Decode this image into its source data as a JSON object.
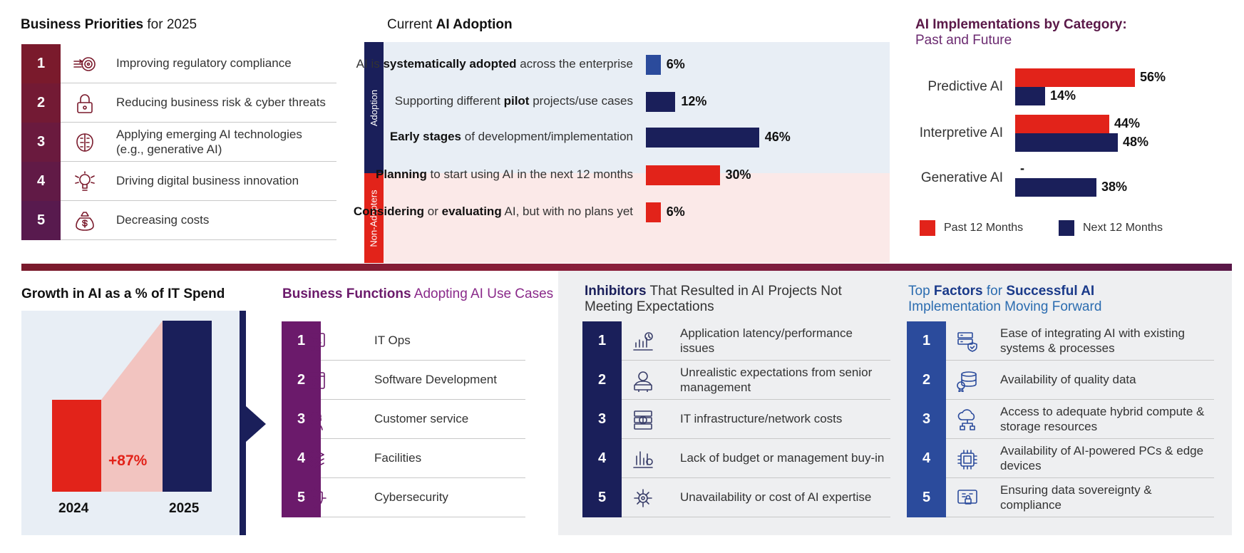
{
  "colors": {
    "red": "#e2231a",
    "navy": "#1a1f5a",
    "maroon": "#7a1a2c",
    "purple": "#6b1a6b",
    "blue": "#2b4b9c"
  },
  "business_priorities": {
    "title_strong": "Business Priorities",
    "title_rest": "for 2025",
    "items": [
      {
        "num": "1",
        "label": "Improving regulatory compliance",
        "icon": "compliance-target-icon"
      },
      {
        "num": "2",
        "label": "Reducing business risk & cyber threats",
        "icon": "lock-shield-icon"
      },
      {
        "num": "3",
        "label": "Applying emerging AI technologies (e.g., generative AI)",
        "icon": "ai-brain-icon"
      },
      {
        "num": "4",
        "label": "Driving digital business innovation",
        "icon": "innovation-bulb-icon"
      },
      {
        "num": "5",
        "label": "Decreasing costs",
        "icon": "money-bag-icon"
      }
    ]
  },
  "adoption": {
    "title_rest": "Current",
    "title_strong": "AI Adoption",
    "tab_adoption": "Adoption",
    "tab_non_adopters": "Non-Adopters",
    "rows": [
      {
        "pre": "AI is ",
        "strong": "systematically adopted",
        "post": " across the enterprise",
        "strong2": "",
        "post2": "",
        "value_label": "6%"
      },
      {
        "pre": "Supporting different ",
        "strong": "pilot",
        "post": " projects/use cases",
        "strong2": "",
        "post2": "",
        "value_label": "12%"
      },
      {
        "pre": "",
        "strong": "Early stages",
        "post": " of development/implementation",
        "strong2": "",
        "post2": "",
        "value_label": "46%"
      },
      {
        "pre": "",
        "strong": "Planning",
        "post": " to start using AI in the next 12 months",
        "strong2": "",
        "post2": "",
        "value_label": "30%"
      },
      {
        "pre": "",
        "strong": "Considering",
        "post": " or ",
        "strong2": "evaluating",
        "post2": " AI, but with no plans yet",
        "value_label": "6%"
      }
    ]
  },
  "categories": {
    "title_line1": "AI Implementations by Category:",
    "title_line2": "Past and Future",
    "past_label": "Past 12 Months",
    "next_label": "Next 12 Months",
    "rows": [
      {
        "name": "Predictive AI",
        "past_label": "56%",
        "next_label": "14%"
      },
      {
        "name": "Interpretive AI",
        "past_label": "44%",
        "next_label": "48%"
      },
      {
        "name": "Generative AI",
        "past_label": "-",
        "next_label": "38%"
      }
    ]
  },
  "growth": {
    "title": "Growth in AI as a % of IT Spend",
    "growth_label": "+87%",
    "year1": "2024",
    "year2": "2025"
  },
  "functions": {
    "title_strong": "Business Functions",
    "title_rest": "Adopting AI Use Cases",
    "items": [
      {
        "num": "1",
        "label": "IT Ops",
        "icon": "monitor-icon"
      },
      {
        "num": "2",
        "label": "Software Development",
        "icon": "code-window-icon"
      },
      {
        "num": "3",
        "label": "Customer service",
        "icon": "headset-agent-icon"
      },
      {
        "num": "4",
        "label": "Facilities",
        "icon": "layers-gear-icon"
      },
      {
        "num": "5",
        "label": "Cybersecurity",
        "icon": "shield-circuit-icon"
      }
    ]
  },
  "inhibitors": {
    "title_strong": "Inhibitors",
    "title_rest": "That Resulted in AI Projects Not",
    "title_line2": "Meeting Expectations",
    "items": [
      {
        "num": "1",
        "label": "Application latency/performance issues",
        "icon": "performance-chart-icon"
      },
      {
        "num": "2",
        "label": "Unrealistic expectations from senior management",
        "icon": "manager-icon"
      },
      {
        "num": "3",
        "label": "IT infrastructure/network costs",
        "icon": "server-cost-icon"
      },
      {
        "num": "4",
        "label": "Lack of budget or management buy-in",
        "icon": "budget-chart-icon"
      },
      {
        "num": "5",
        "label": "Unavailability or cost of AI expertise",
        "icon": "ai-expertise-icon"
      }
    ]
  },
  "factors": {
    "title_pre": "Top",
    "title_strong": "Factors",
    "title_mid": "for",
    "title_strong2": "Successful AI",
    "title_line2": "Implementation Moving Forward",
    "items": [
      {
        "num": "1",
        "label": "Ease of integrating AI with existing systems & processes",
        "icon": "server-shield-icon"
      },
      {
        "num": "2",
        "label": "Availability of quality data",
        "icon": "database-badge-icon"
      },
      {
        "num": "3",
        "label": "Access to adequate hybrid compute & storage resources",
        "icon": "cloud-compute-icon"
      },
      {
        "num": "4",
        "label": "Availability of AI-powered PCs & edge devices",
        "icon": "ai-chip-icon"
      },
      {
        "num": "5",
        "label": "Ensuring data sovereignty & compliance",
        "icon": "data-lock-icon"
      }
    ]
  },
  "chart_data": [
    {
      "type": "bar",
      "title": "Current AI Adoption",
      "categories": [
        "AI is systematically adopted across the enterprise",
        "Supporting different pilot projects/use cases",
        "Early stages of development/implementation",
        "Planning to start using AI in the next 12 months",
        "Considering or evaluating AI, but with no plans yet"
      ],
      "values": [
        6,
        12,
        46,
        30,
        6
      ],
      "groups": [
        "Adoption",
        "Adoption",
        "Adoption",
        "Non-Adopters",
        "Non-Adopters"
      ]
    },
    {
      "type": "bar",
      "title": "AI Implementations by Category: Past and Future",
      "categories": [
        "Predictive AI",
        "Interpretive AI",
        "Generative AI"
      ],
      "series": [
        {
          "name": "Past 12 Months",
          "values": [
            56,
            44,
            null
          ]
        },
        {
          "name": "Next 12 Months",
          "values": [
            14,
            48,
            38
          ]
        }
      ],
      "legend": "bottom"
    },
    {
      "type": "bar",
      "title": "Growth in AI as a % of IT Spend",
      "categories": [
        "2024",
        "2025"
      ],
      "values": [
        1,
        1.87
      ],
      "annotations": [
        "+87%"
      ]
    }
  ]
}
